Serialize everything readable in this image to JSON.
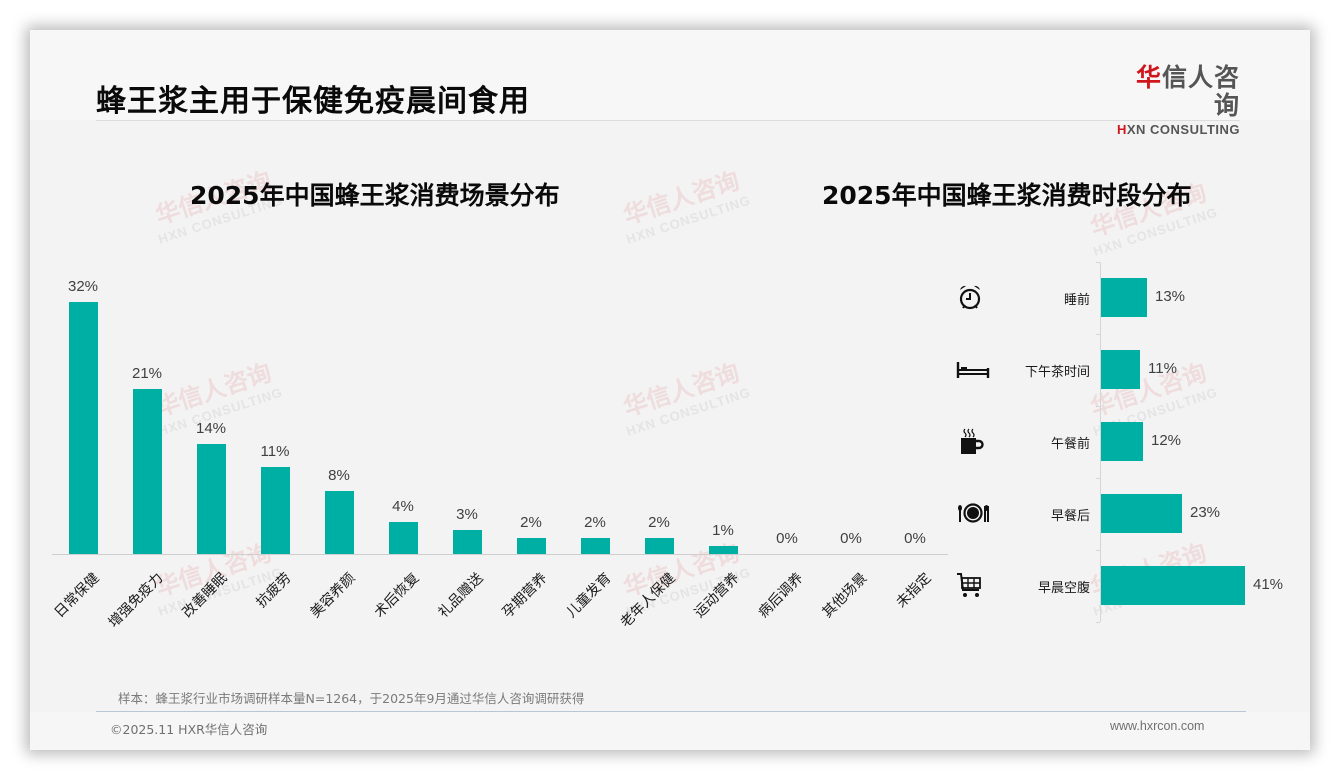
{
  "header": {
    "title": "蜂王浆主用于保健免疫晨间食用",
    "logo_cn_red": "华",
    "logo_cn_rest": "信人咨询",
    "logo_en_red": "H",
    "logo_en_rest": "XN CONSULTING"
  },
  "watermark": {
    "cn": "华信人咨询",
    "en": "HXN CONSULTING"
  },
  "colors": {
    "bar": "#00afa4",
    "brand_red": "#d0161d",
    "background": "#f3f3f3"
  },
  "chart_data": [
    {
      "type": "bar",
      "title": "2025年中国蜂王浆消费场景分布",
      "xlabel": "",
      "ylabel": "",
      "ylim": [
        0,
        35
      ],
      "grid": false,
      "legend": null,
      "categories": [
        "日常保健",
        "增强免疫力",
        "改善睡眠",
        "抗疲劳",
        "美容养颜",
        "术后恢复",
        "礼品赠送",
        "孕期营养",
        "儿童发育",
        "老年人保健",
        "运动营养",
        "病后调养",
        "其他场景",
        "未指定"
      ],
      "values": [
        32,
        21,
        14,
        11,
        8,
        4,
        3,
        2,
        2,
        2,
        1,
        0,
        0,
        0
      ],
      "labels": [
        "32%",
        "21%",
        "14%",
        "11%",
        "8%",
        "4%",
        "3%",
        "2%",
        "2%",
        "2%",
        "1%",
        "0%",
        "0%",
        "0%"
      ],
      "unit": "%"
    },
    {
      "type": "bar",
      "orientation": "horizontal",
      "title": "2025年中国蜂王浆消费时段分布",
      "xlabel": "",
      "ylabel": "",
      "xlim": [
        0,
        45
      ],
      "grid": false,
      "legend": null,
      "categories": [
        "睡前",
        "下午茶时间",
        "午餐前",
        "早餐后",
        "早晨空腹"
      ],
      "values": [
        13,
        11,
        12,
        23,
        41
      ],
      "labels": [
        "13%",
        "11%",
        "12%",
        "23%",
        "41%"
      ],
      "icons": [
        "alarm-clock-icon",
        "bed-icon",
        "coffee-mug-icon",
        "plate-cutlery-icon",
        "shopping-cart-icon"
      ],
      "unit": "%"
    }
  ],
  "footer": {
    "note": "样本：蜂王浆行业市场调研样本量N=1264，于2025年9月通过华信人咨询调研获得",
    "copyright": "©2025.11 HXR华信人咨询",
    "website": "www.hxrcon.com"
  }
}
